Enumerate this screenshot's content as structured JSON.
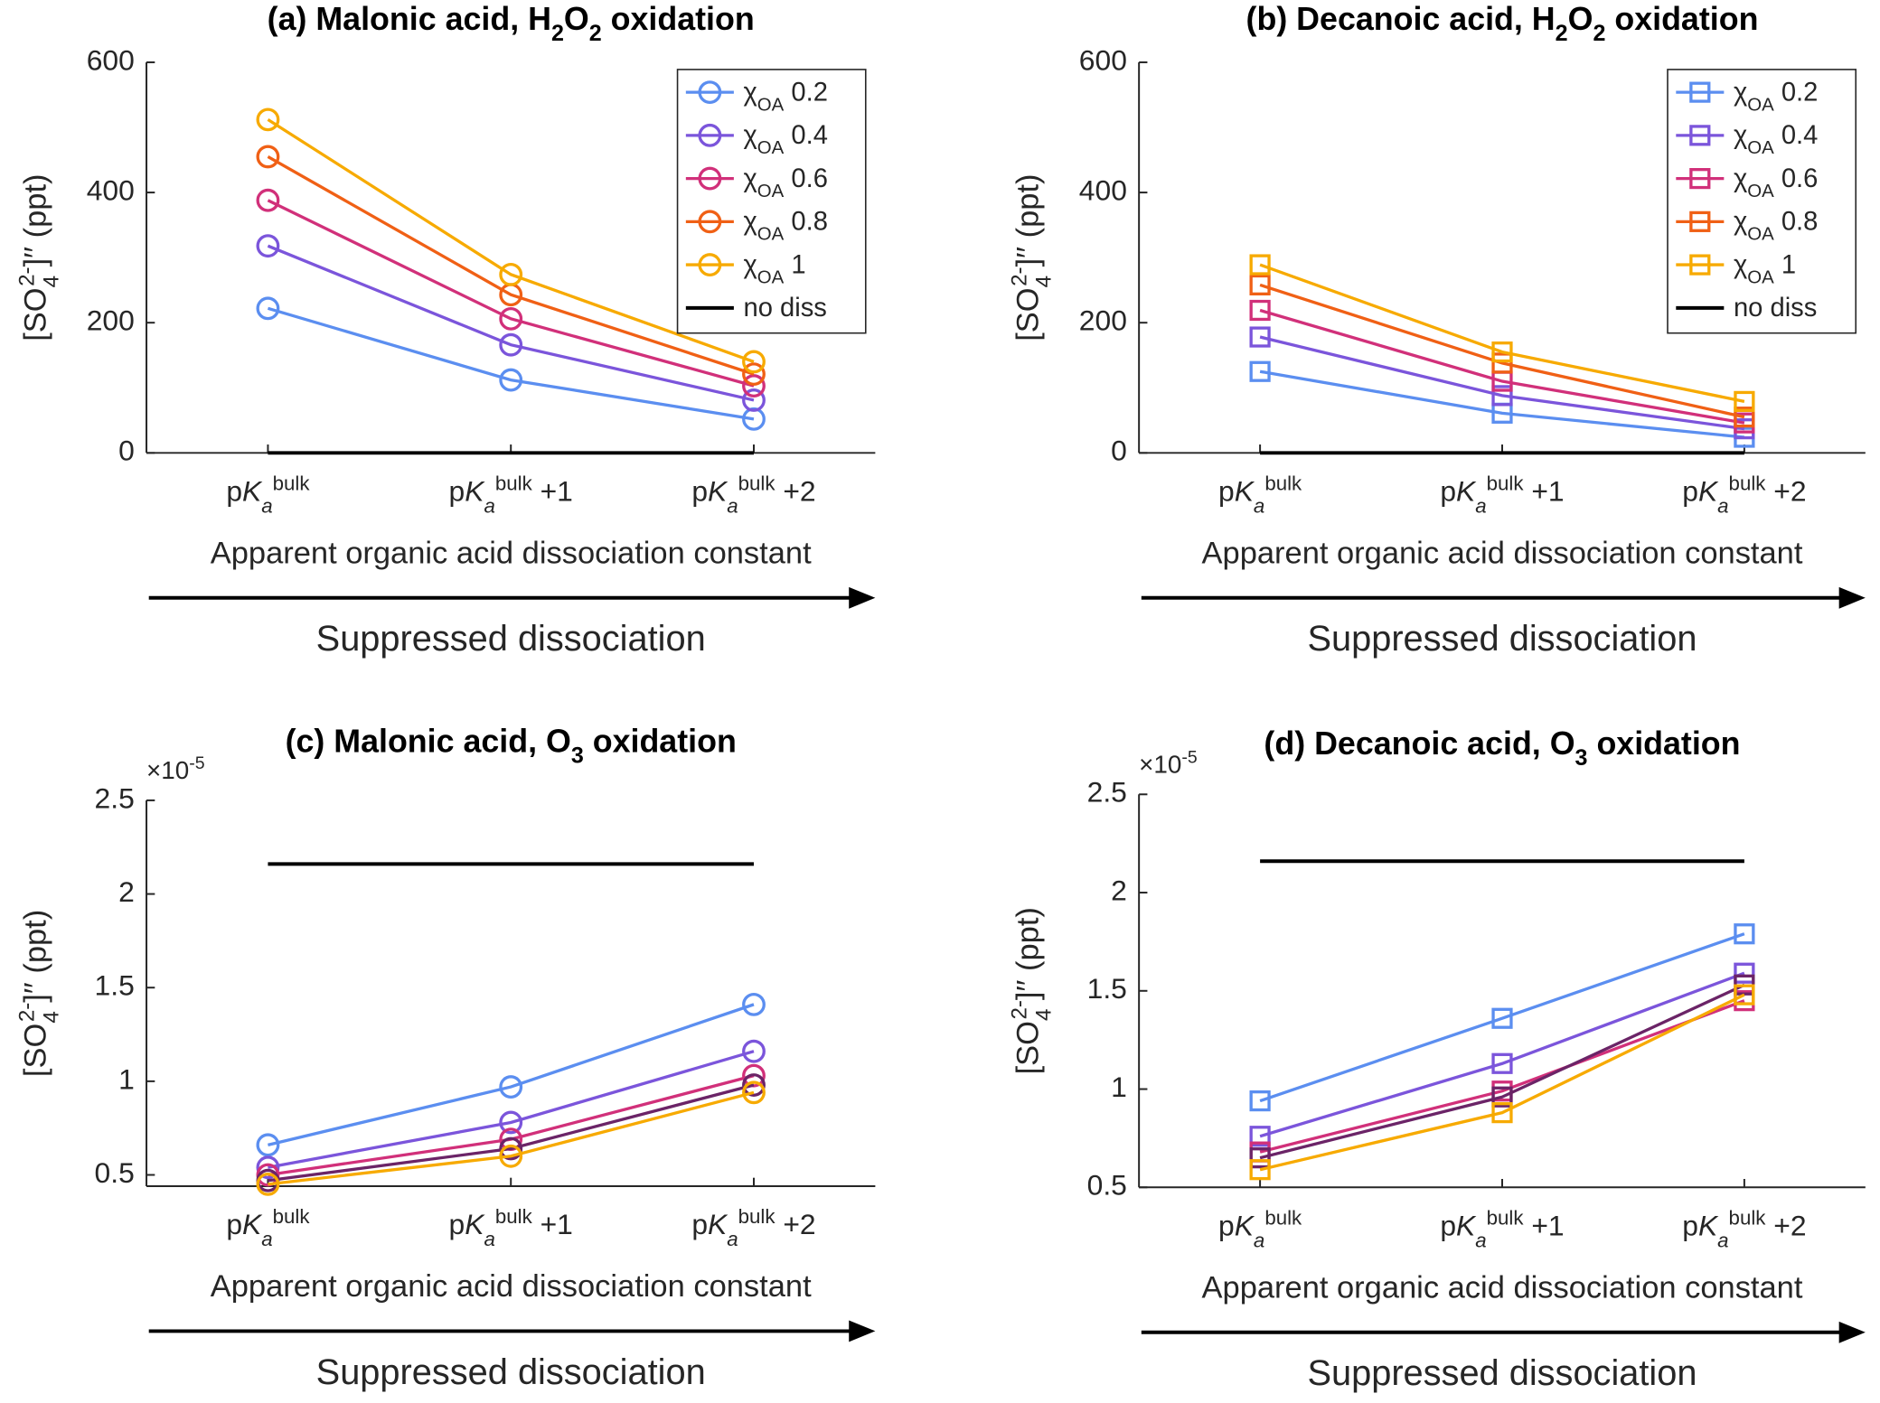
{
  "chart_data": [
    {
      "type": "line",
      "title": "(a) Malonic acid, H2O2 oxidation",
      "ylabel": "[SO42-]′′ (ppt)",
      "xlabel": "Apparent organic acid dissociation constant",
      "annotation": "Suppressed dissociation",
      "categories": [
        "pKabulk",
        "pKabulk +1",
        "pKabulk +2"
      ],
      "ylim": [
        0,
        600
      ],
      "yticks": [
        0,
        200,
        400,
        600
      ],
      "legend": "northeast",
      "marker": "circle",
      "series": [
        {
          "name": "χOA 0.2",
          "color": "#5b8ef0",
          "values": [
            222,
            112,
            52
          ]
        },
        {
          "name": "χOA 0.4",
          "color": "#7b55db",
          "values": [
            318,
            166,
            81
          ]
        },
        {
          "name": "χOA 0.6",
          "color": "#d1307a",
          "values": [
            388,
            206,
            103
          ]
        },
        {
          "name": "χOA 0.8",
          "color": "#f06015",
          "values": [
            455,
            243,
            121
          ]
        },
        {
          "name": "χOA 1",
          "color": "#f7aa00",
          "values": [
            512,
            274,
            140
          ]
        },
        {
          "name": "no diss",
          "color": "#000000",
          "values": [
            0,
            0,
            0
          ]
        }
      ]
    },
    {
      "type": "line",
      "title": "(b) Decanoic acid, H2O2 oxidation",
      "ylabel": "[SO42-]′′ (ppt)",
      "xlabel": "Apparent organic acid dissociation constant",
      "annotation": "Suppressed dissociation",
      "categories": [
        "pKabulk",
        "pKabulk +1",
        "pKabulk +2"
      ],
      "ylim": [
        0,
        600
      ],
      "yticks": [
        0,
        200,
        400,
        600
      ],
      "legend": "northeast",
      "marker": "square",
      "series": [
        {
          "name": "χOA 0.2",
          "color": "#5b8ef0",
          "values": [
            125,
            61,
            24
          ]
        },
        {
          "name": "χOA 0.4",
          "color": "#7b55db",
          "values": [
            178,
            88,
            37
          ]
        },
        {
          "name": "χOA 0.6",
          "color": "#d1307a",
          "values": [
            219,
            110,
            46
          ]
        },
        {
          "name": "χOA 0.8",
          "color": "#f06015",
          "values": [
            258,
            138,
            55
          ]
        },
        {
          "name": "χOA 1",
          "color": "#f7aa00",
          "values": [
            289,
            155,
            79
          ]
        },
        {
          "name": "no diss",
          "color": "#000000",
          "values": [
            0,
            0,
            0
          ]
        }
      ]
    },
    {
      "type": "line",
      "title": "(c) Malonic acid, O3 oxidation",
      "ylabel": "[SO42-]′′ (ppt)",
      "y_multiplier": "×10-5",
      "xlabel": "Apparent organic acid dissociation constant",
      "annotation": "Suppressed dissociation",
      "categories": [
        "pKabulk",
        "pKabulk +1",
        "pKabulk +2"
      ],
      "ylim": [
        0.44,
        2.5
      ],
      "yticks": [
        0.5,
        1,
        1.5,
        2,
        2.5
      ],
      "marker": "circle",
      "series": [
        {
          "color": "#5b8ef0",
          "values": [
            0.66,
            0.97,
            1.41
          ]
        },
        {
          "color": "#7b55db",
          "values": [
            0.54,
            0.78,
            1.16
          ]
        },
        {
          "color": "#d1307a",
          "values": [
            0.5,
            0.69,
            1.03
          ]
        },
        {
          "color": "#6b2467",
          "values": [
            0.47,
            0.64,
            0.98
          ]
        },
        {
          "color": "#f7aa00",
          "values": [
            0.45,
            0.6,
            0.94
          ]
        },
        {
          "color": "#000000",
          "values": [
            2.16,
            2.16,
            2.16
          ]
        }
      ]
    },
    {
      "type": "line",
      "title": "(d) Decanoic acid, O3 oxidation",
      "ylabel": "[SO42-]′′ (ppt)",
      "y_multiplier": "×10-5",
      "xlabel": "Apparent organic acid dissociation constant",
      "annotation": "Suppressed dissociation",
      "categories": [
        "pKabulk",
        "pKabulk +1",
        "pKabulk +2"
      ],
      "ylim": [
        0.5,
        2.5
      ],
      "yticks": [
        0.5,
        1,
        1.5,
        2,
        2.5
      ],
      "marker": "square",
      "series": [
        {
          "color": "#5b8ef0",
          "values": [
            0.94,
            1.36,
            1.79
          ]
        },
        {
          "color": "#7b55db",
          "values": [
            0.76,
            1.13,
            1.59
          ]
        },
        {
          "color": "#d1307a",
          "values": [
            0.68,
            0.99,
            1.45
          ]
        },
        {
          "color": "#6b2467",
          "values": [
            0.65,
            0.96,
            1.53
          ]
        },
        {
          "color": "#f7aa00",
          "values": [
            0.59,
            0.88,
            1.48
          ]
        },
        {
          "color": "#000000",
          "values": [
            2.16,
            2.16,
            2.16
          ]
        }
      ]
    }
  ]
}
